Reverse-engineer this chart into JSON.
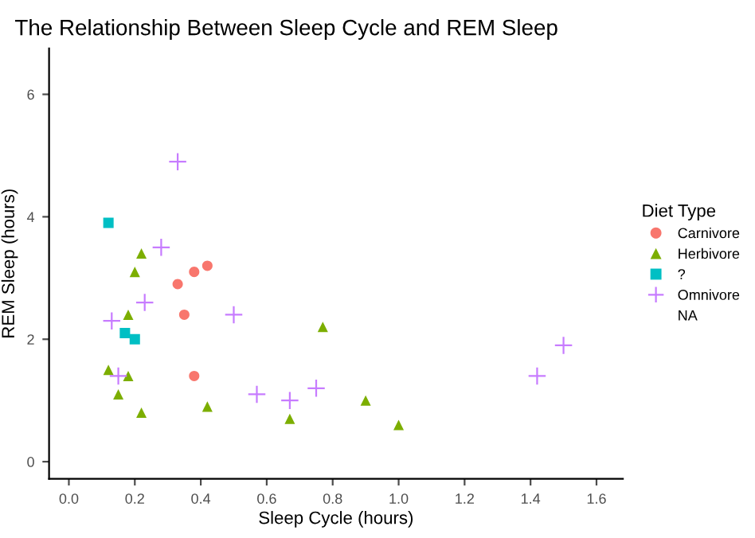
{
  "chart_data": {
    "type": "scatter",
    "title": "The Relationship Between Sleep Cycle and REM Sleep",
    "xlabel": "Sleep Cycle (hours)",
    "ylabel": "REM Sleep (hours)",
    "legend_title": "Diet Type",
    "legend": "right",
    "grid": false,
    "xlim": [
      -0.06,
      1.68
    ],
    "xticks": [
      {
        "value": 0,
        "label": "0.0"
      },
      0.2,
      0.4,
      0.6,
      0.8,
      {
        "value": 1,
        "label": "1.0"
      },
      1.2,
      1.4,
      1.6
    ],
    "ylim": [
      -0.28,
      6.75
    ],
    "yticks": [
      0,
      2,
      4,
      6
    ],
    "series": [
      {
        "name": "Carnivore",
        "color": "#f8766d",
        "marker": "circle",
        "x": [
          0.33,
          0.38,
          0.42,
          0.35,
          0.38
        ],
        "values": [
          2.9,
          3.1,
          3.2,
          2.4,
          1.4
        ]
      },
      {
        "name": "Herbivore",
        "color": "#7cae00",
        "marker": "triangle",
        "x": [
          0.22,
          0.2,
          0.18,
          0.12,
          0.15,
          0.18,
          0.22,
          0.42,
          0.67,
          0.77,
          0.9,
          1.0
        ],
        "values": [
          3.4,
          3.1,
          2.4,
          1.5,
          1.1,
          1.4,
          0.8,
          0.9,
          0.7,
          2.2,
          1.0,
          0.6
        ]
      },
      {
        "name": "?",
        "color": "#00bfc4",
        "marker": "square",
        "x": [
          0.12,
          0.17,
          0.2
        ],
        "values": [
          3.9,
          2.1,
          2.0
        ]
      },
      {
        "name": "Omnivore",
        "color": "#c77cff",
        "marker": "cross",
        "x": [
          0.33,
          0.28,
          0.23,
          0.13,
          0.15,
          0.5,
          0.57,
          0.67,
          0.75,
          1.42,
          1.5
        ],
        "values": [
          4.9,
          3.5,
          2.6,
          2.3,
          1.4,
          2.4,
          1.1,
          1.0,
          1.2,
          1.4,
          1.9
        ]
      },
      {
        "name": "NA",
        "marker": "none"
      }
    ]
  }
}
